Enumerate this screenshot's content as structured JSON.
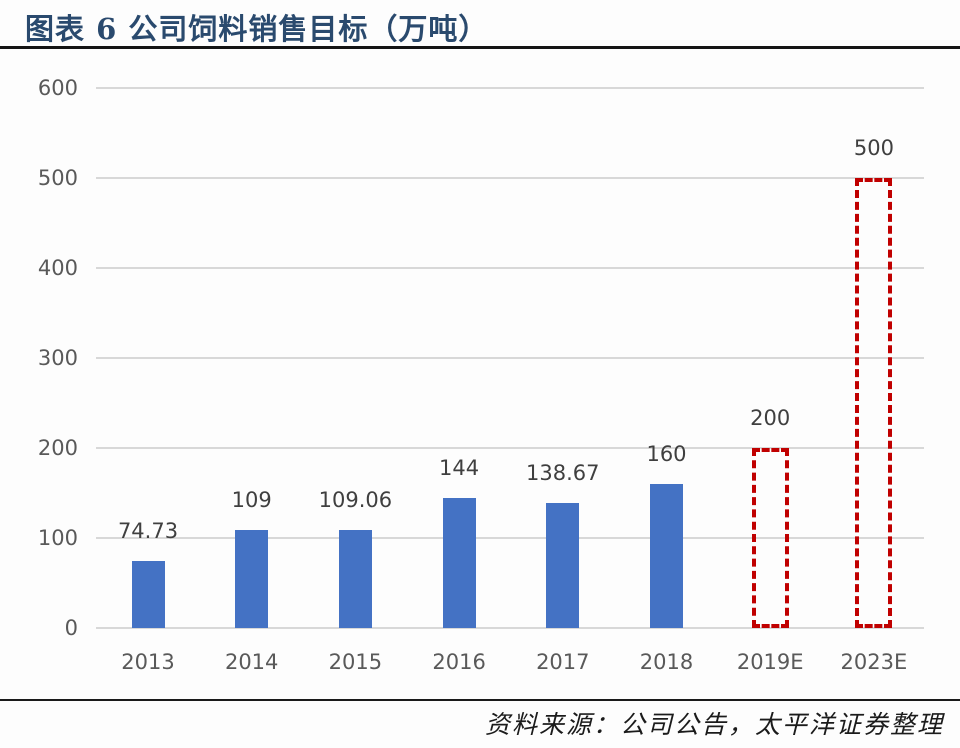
{
  "header": {
    "title": "图表 6 公司饲料销售目标（万吨）"
  },
  "footer": {
    "source": "资料来源：公司公告，太平洋证券整理"
  },
  "colors": {
    "title": "#2a4a6e",
    "title_rule": "#141414",
    "footer_rule": "#1a1a1a",
    "source_text": "#1b1b1b",
    "actual_bar": "#4472c4",
    "target_outline": "#c00000",
    "gridline": "#d8d8d8",
    "axis_label": "#595959",
    "data_label": "#3f3f3f",
    "background": "#fdfdfd"
  },
  "chart_data": {
    "type": "bar",
    "title": "图表 6 公司饲料销售目标（万吨）",
    "unit": "万吨",
    "categories": [
      "2013",
      "2014",
      "2015",
      "2016",
      "2017",
      "2018",
      "2019E",
      "2023E"
    ],
    "values": [
      74.73,
      109,
      109.06,
      144,
      138.67,
      160,
      200,
      500
    ],
    "data_labels": [
      "74.73",
      "109",
      "109.06",
      "144",
      "138.67",
      "160",
      "200",
      "500"
    ],
    "bar_styles": [
      "actual",
      "actual",
      "actual",
      "actual",
      "actual",
      "actual",
      "target",
      "target"
    ],
    "series_styles": {
      "actual": "solid blue fill (historical sales)",
      "target": "red dashed outline, no fill (target/estimate)"
    },
    "ylim": [
      0,
      600
    ],
    "yticks": [
      0,
      100,
      200,
      300,
      400,
      500,
      600
    ],
    "xlabel": "",
    "ylabel": "",
    "grid": true,
    "legend": "none"
  }
}
